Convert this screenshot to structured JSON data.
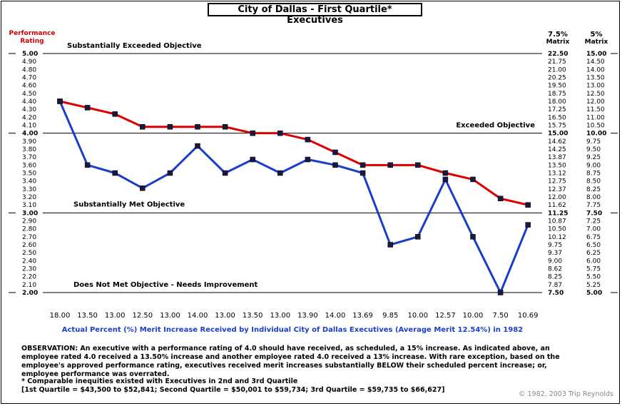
{
  "title": "City of Dallas - First Quartile* Executives",
  "left_header": "Performance Rating",
  "matrix_headers": [
    {
      "top": "7.5%",
      "bottom": "Matrix"
    },
    {
      "top": "5%",
      "bottom": "Matrix"
    }
  ],
  "zones": [
    {
      "label": "Substantially Exceeded Objective",
      "y": 5.0
    },
    {
      "label": "Exceeded Objective",
      "y": 4.0
    },
    {
      "label": "Substantially Met Objective",
      "y": 3.0
    },
    {
      "label": "Does Not Met Objective - Needs Improvement",
      "y": 2.0
    }
  ],
  "xlabel": "Actual Percent (%) Merit Increase Received by Individual City of Dallas Executives (Average Merit 12.54%) in 1982",
  "observation": "OBSERVATION: An executive with a performance rating of 4.0 should have received, as scheduled, a 15% increase.  As indicated above, an employee rated 4.0 received a 13.50% increase and another employee rated 4.0 received a 13% increase.  With rare exception, based on the employee's approved performance rating, executives received merit increases substantially BELOW their scheduled percent increase; or, employee performance was overrated.",
  "footnote_1": "* Comparable inequities existed with Executives in 2nd and 3rd Quartile",
  "footnote_2": "[1st Quartile = $43,500 to $52,841; Second Quartile = $50,001 to $59,734; 3rd Quartile = $59,735 to $66,627]",
  "copyright": "© 1982, 2003 Trip Reynolds",
  "colors": {
    "red_series": "#dd0000",
    "blue_series": "#1a3ec8",
    "caption": "#1a3ec8",
    "header_red": "#cc0000"
  },
  "chart_data": {
    "type": "line",
    "categories": [
      "18.00",
      "13.50",
      "13.00",
      "12.50",
      "13.00",
      "14.00",
      "13.00",
      "13.50",
      "13.00",
      "13.90",
      "14.00",
      "13.69",
      "9.85",
      "10.00",
      "12.57",
      "10.00",
      "7.50",
      "10.69"
    ],
    "y_ticks": [
      "5.00",
      "4.90",
      "4.80",
      "4.70",
      "4.60",
      "4.50",
      "4.40",
      "4.30",
      "4.20",
      "4.10",
      "4.00",
      "3.90",
      "3.80",
      "3.70",
      "3.60",
      "3.50",
      "3.40",
      "3.30",
      "3.20",
      "3.10",
      "3.00",
      "2.90",
      "2.80",
      "2.70",
      "2.60",
      "2.50",
      "2.40",
      "2.30",
      "2.20",
      "2.10",
      "2.00"
    ],
    "matrix_7_5": [
      "22.50",
      "21.75",
      "21.00",
      "20.25",
      "19.50",
      "18.75",
      "18.00",
      "17.25",
      "16.50",
      "15.75",
      "15.00",
      "14.62",
      "14.25",
      "13.87",
      "13.50",
      "13.12",
      "12.75",
      "12.37",
      "12.00",
      "11.62",
      "11.25",
      "10.87",
      "10.50",
      "10.12",
      "9.75",
      "9.37",
      "9.00",
      "8.62",
      "8.25",
      "7.87",
      "7.50"
    ],
    "matrix_5": [
      "15.00",
      "14.50",
      "14.00",
      "13.50",
      "13.00",
      "12.50",
      "12.00",
      "11.50",
      "11.00",
      "10.50",
      "10.00",
      "9.75",
      "9.50",
      "9.25",
      "9.00",
      "8.75",
      "8.50",
      "8.25",
      "8.00",
      "7.75",
      "7.50",
      "7.25",
      "7.00",
      "6.75",
      "6.50",
      "6.25",
      "6.00",
      "5.75",
      "5.50",
      "5.25",
      "5.00"
    ],
    "bold_ticks": [
      "5.00",
      "4.00",
      "3.00",
      "2.00"
    ],
    "ylim": [
      2.0,
      5.0
    ],
    "series": [
      {
        "color": "#1a3ec8",
        "values": [
          4.4,
          3.6,
          3.5,
          3.31,
          3.5,
          3.84,
          3.5,
          3.67,
          3.5,
          3.67,
          3.6,
          3.5,
          2.6,
          2.7,
          3.42,
          2.7,
          2.0,
          2.85
        ]
      },
      {
        "color": "#dd0000",
        "values": [
          4.4,
          4.32,
          4.24,
          4.08,
          4.08,
          4.08,
          4.08,
          4.0,
          4.0,
          3.92,
          3.76,
          3.6,
          3.6,
          3.6,
          3.5,
          3.42,
          3.18,
          3.1
        ]
      }
    ]
  }
}
